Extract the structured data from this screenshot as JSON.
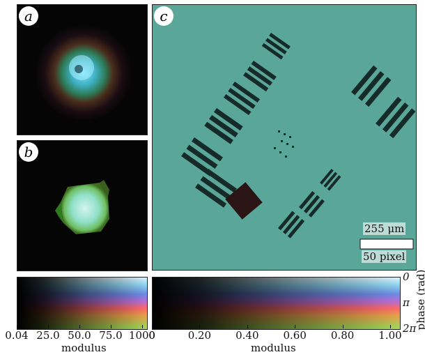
{
  "panels": {
    "a": {
      "label": "a"
    },
    "b": {
      "label": "b"
    },
    "c": {
      "label": "c"
    }
  },
  "scalebar": {
    "physical": "255 μm",
    "pixels": "50 pixel"
  },
  "colorbar_left": {
    "ticks": [
      "0.04",
      "25.0",
      "50.0",
      "75.0",
      "1000"
    ],
    "xlabel": "modulus"
  },
  "colorbar_right": {
    "ticks": [
      "0",
      "0.20",
      "0.40",
      "0.60",
      "0.80",
      "1.00"
    ],
    "xlabel": "modulus",
    "phase_ticks": [
      "0",
      "π",
      "2π"
    ],
    "ylabel": "phase (rad)"
  },
  "colors": {
    "background_c": "#5aa79a",
    "bar_dark": "#1c1c1c"
  }
}
